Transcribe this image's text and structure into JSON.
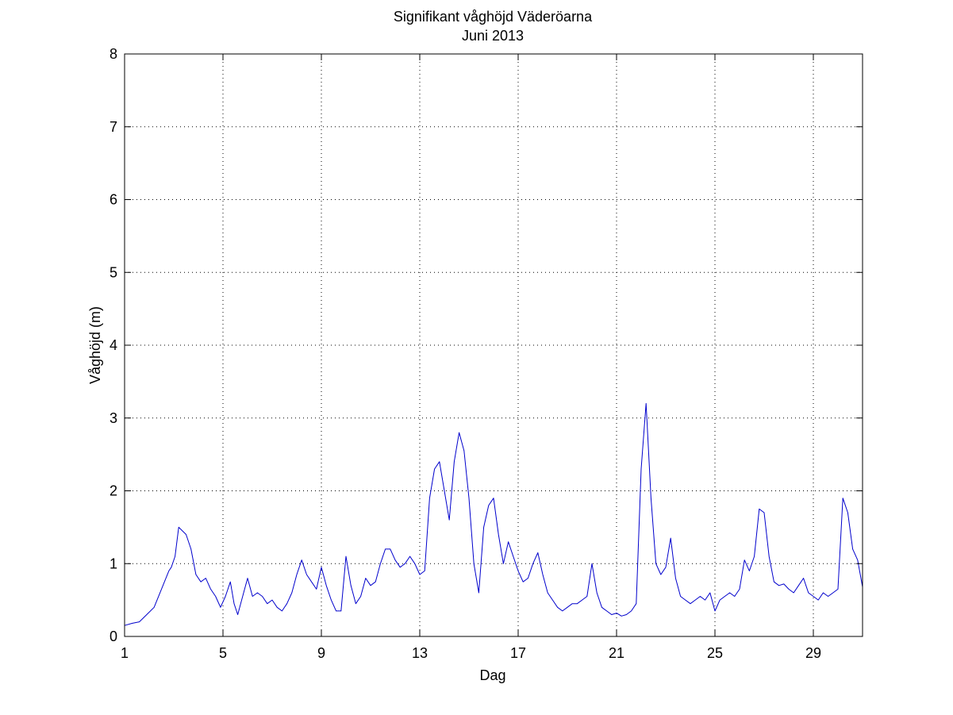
{
  "chart_data": {
    "type": "line",
    "title": "Signifikant våghöjd Väderöarna",
    "subtitle": "Juni 2013",
    "xlabel": "Dag",
    "ylabel": "Våghöjd (m)",
    "xlim": [
      1,
      31
    ],
    "ylim": [
      0,
      8
    ],
    "xticks": [
      1,
      5,
      9,
      13,
      17,
      21,
      25,
      29
    ],
    "yticks": [
      0,
      1,
      2,
      3,
      4,
      5,
      6,
      7,
      8
    ],
    "grid": true,
    "series": [
      {
        "color": "#0000cc",
        "x": [
          1.0,
          1.3,
          1.6,
          1.9,
          2.2,
          2.5,
          2.8,
          2.9,
          3.05,
          3.2,
          3.35,
          3.5,
          3.7,
          3.9,
          4.1,
          4.3,
          4.5,
          4.7,
          4.9,
          5.1,
          5.3,
          5.45,
          5.6,
          5.8,
          6.0,
          6.2,
          6.4,
          6.6,
          6.8,
          7.0,
          7.2,
          7.4,
          7.6,
          7.8,
          8.0,
          8.2,
          8.4,
          8.6,
          8.8,
          9.0,
          9.2,
          9.4,
          9.6,
          9.8,
          10.0,
          10.2,
          10.4,
          10.6,
          10.8,
          11.0,
          11.2,
          11.4,
          11.6,
          11.8,
          12.0,
          12.2,
          12.4,
          12.6,
          12.8,
          13.0,
          13.2,
          13.4,
          13.6,
          13.8,
          14.0,
          14.2,
          14.4,
          14.6,
          14.8,
          15.0,
          15.2,
          15.4,
          15.6,
          15.8,
          16.0,
          16.2,
          16.4,
          16.6,
          16.8,
          17.0,
          17.2,
          17.4,
          17.6,
          17.8,
          18.0,
          18.2,
          18.4,
          18.6,
          18.8,
          19.0,
          19.2,
          19.4,
          19.6,
          19.8,
          20.0,
          20.2,
          20.4,
          20.6,
          20.8,
          21.0,
          21.2,
          21.4,
          21.6,
          21.8,
          22.0,
          22.2,
          22.4,
          22.6,
          22.8,
          23.0,
          23.2,
          23.4,
          23.6,
          23.8,
          24.0,
          24.2,
          24.4,
          24.6,
          24.8,
          25.0,
          25.2,
          25.4,
          25.6,
          25.8,
          26.0,
          26.2,
          26.4,
          26.6,
          26.8,
          27.0,
          27.2,
          27.4,
          27.6,
          27.8,
          28.0,
          28.2,
          28.4,
          28.6,
          28.8,
          29.0,
          29.2,
          29.4,
          29.6,
          29.8,
          30.0,
          30.2,
          30.4,
          30.6,
          30.8,
          31.0
        ],
        "y": [
          0.15,
          0.18,
          0.2,
          0.3,
          0.4,
          0.65,
          0.9,
          0.95,
          1.1,
          1.5,
          1.45,
          1.4,
          1.2,
          0.85,
          0.75,
          0.8,
          0.65,
          0.55,
          0.4,
          0.55,
          0.75,
          0.45,
          0.3,
          0.55,
          0.8,
          0.55,
          0.6,
          0.55,
          0.45,
          0.5,
          0.4,
          0.35,
          0.45,
          0.6,
          0.85,
          1.05,
          0.85,
          0.75,
          0.65,
          0.95,
          0.7,
          0.5,
          0.35,
          0.35,
          1.1,
          0.7,
          0.45,
          0.55,
          0.8,
          0.7,
          0.75,
          1.0,
          1.2,
          1.2,
          1.05,
          0.95,
          1.0,
          1.1,
          1.0,
          0.85,
          0.9,
          1.9,
          2.3,
          2.4,
          2.0,
          1.6,
          2.4,
          2.8,
          2.55,
          1.9,
          1.0,
          0.6,
          1.5,
          1.8,
          1.9,
          1.4,
          1.0,
          1.3,
          1.1,
          0.9,
          0.75,
          0.8,
          1.0,
          1.15,
          0.85,
          0.6,
          0.5,
          0.4,
          0.35,
          0.4,
          0.45,
          0.45,
          0.5,
          0.55,
          1.0,
          0.6,
          0.4,
          0.35,
          0.3,
          0.32,
          0.28,
          0.3,
          0.35,
          0.45,
          2.3,
          3.2,
          1.9,
          1.0,
          0.85,
          0.95,
          1.35,
          0.8,
          0.55,
          0.5,
          0.45,
          0.5,
          0.55,
          0.5,
          0.6,
          0.35,
          0.5,
          0.55,
          0.6,
          0.55,
          0.65,
          1.05,
          0.9,
          1.1,
          1.75,
          1.7,
          1.1,
          0.75,
          0.7,
          0.72,
          0.65,
          0.6,
          0.7,
          0.8,
          0.6,
          0.55,
          0.5,
          0.6,
          0.55,
          0.6,
          0.65,
          1.9,
          1.7,
          1.2,
          1.05,
          0.68
        ]
      }
    ]
  }
}
